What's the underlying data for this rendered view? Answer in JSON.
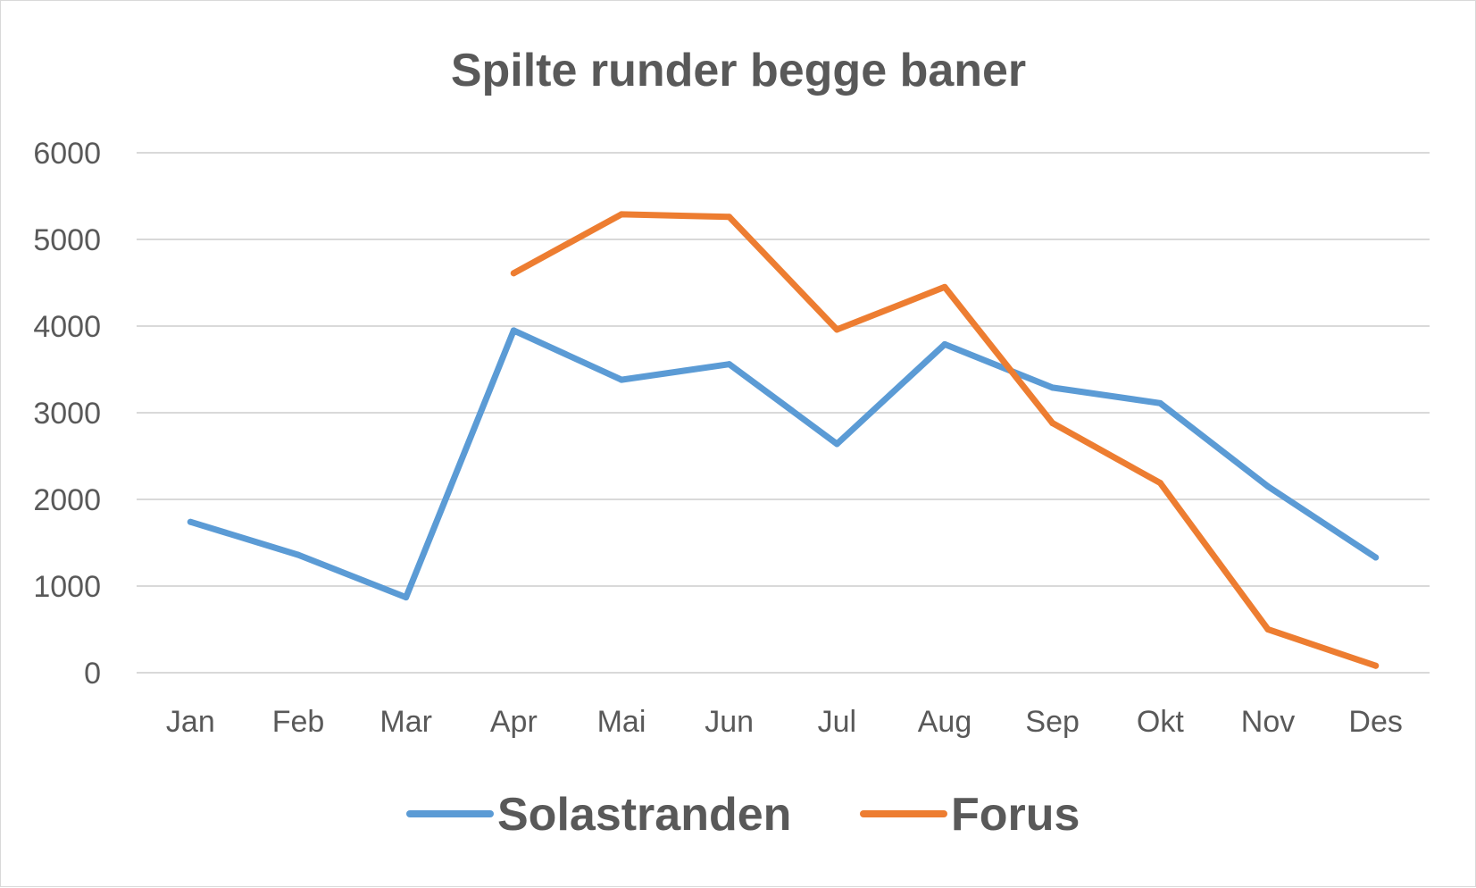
{
  "chart_data": {
    "type": "line",
    "title": "Spilte runder begge baner",
    "xlabel": "",
    "ylabel": "",
    "categories": [
      "Jan",
      "Feb",
      "Mar",
      "Apr",
      "Mai",
      "Jun",
      "Jul",
      "Aug",
      "Sep",
      "Okt",
      "Nov",
      "Des"
    ],
    "ylim": [
      0,
      6000
    ],
    "yticks": [
      "0",
      "1000",
      "2000",
      "3000",
      "4000",
      "5000",
      "6000"
    ],
    "grid": true,
    "legend_position": "bottom",
    "series": [
      {
        "name": "Solastranden",
        "color": "#5B9BD5",
        "values": [
          1740,
          1360,
          870,
          3950,
          3380,
          3560,
          2640,
          3790,
          3290,
          3110,
          2150,
          1330
        ]
      },
      {
        "name": "Forus",
        "color": "#ED7D31",
        "values": [
          null,
          null,
          null,
          4610,
          5290,
          5260,
          3960,
          4450,
          2880,
          2190,
          500,
          80
        ]
      }
    ]
  }
}
